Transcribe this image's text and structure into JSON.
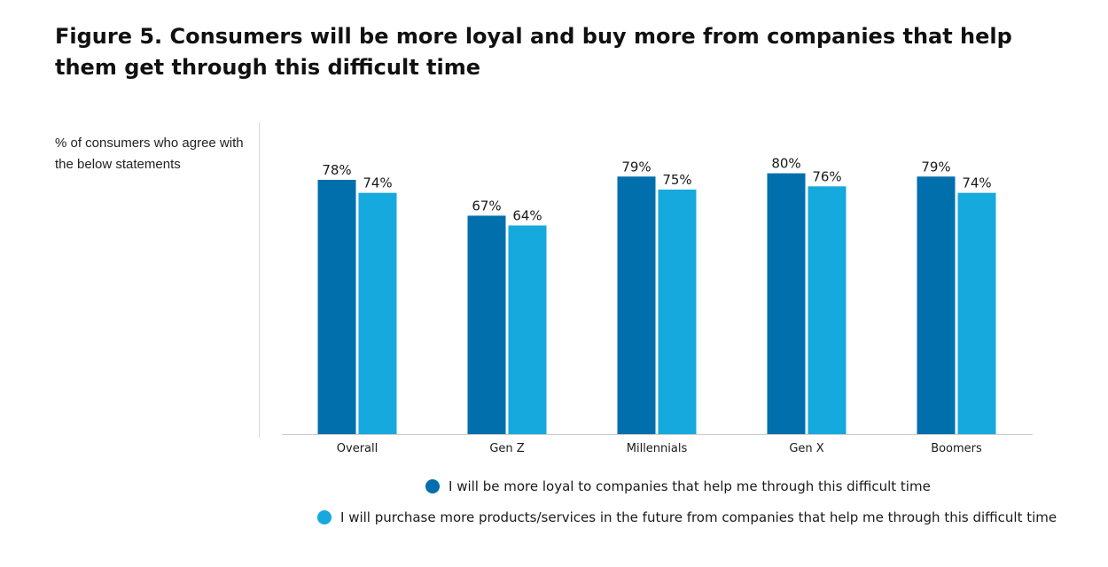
{
  "title": "Figure 5. Consumers will be more loyal and buy more from companies that help them get through this difficult time",
  "subtitle": "% of consumers who agree with the below statements",
  "colors": {
    "series1": "#006fac",
    "series2": "#15a9dd",
    "axis": "#cccccc"
  },
  "chart_data": {
    "type": "bar",
    "categories": [
      "Overall",
      "Gen Z",
      "Millennials",
      "Gen X",
      "Boomers"
    ],
    "series": [
      {
        "name": "I will be more loyal to companies that help me through this difficult time",
        "values": [
          78,
          67,
          79,
          80,
          79
        ]
      },
      {
        "name": "I will purchase more products/services in the future from companies that help me through this difficult time",
        "values": [
          74,
          64,
          75,
          76,
          74
        ]
      }
    ],
    "value_labels": [
      [
        "78%",
        "67%",
        "79%",
        "80%",
        "79%"
      ],
      [
        "74%",
        "64%",
        "75%",
        "76%",
        "74%"
      ]
    ],
    "xlabel": "",
    "ylabel": "",
    "ylim": [
      0,
      100
    ],
    "grid": false,
    "legend": "bottom"
  }
}
